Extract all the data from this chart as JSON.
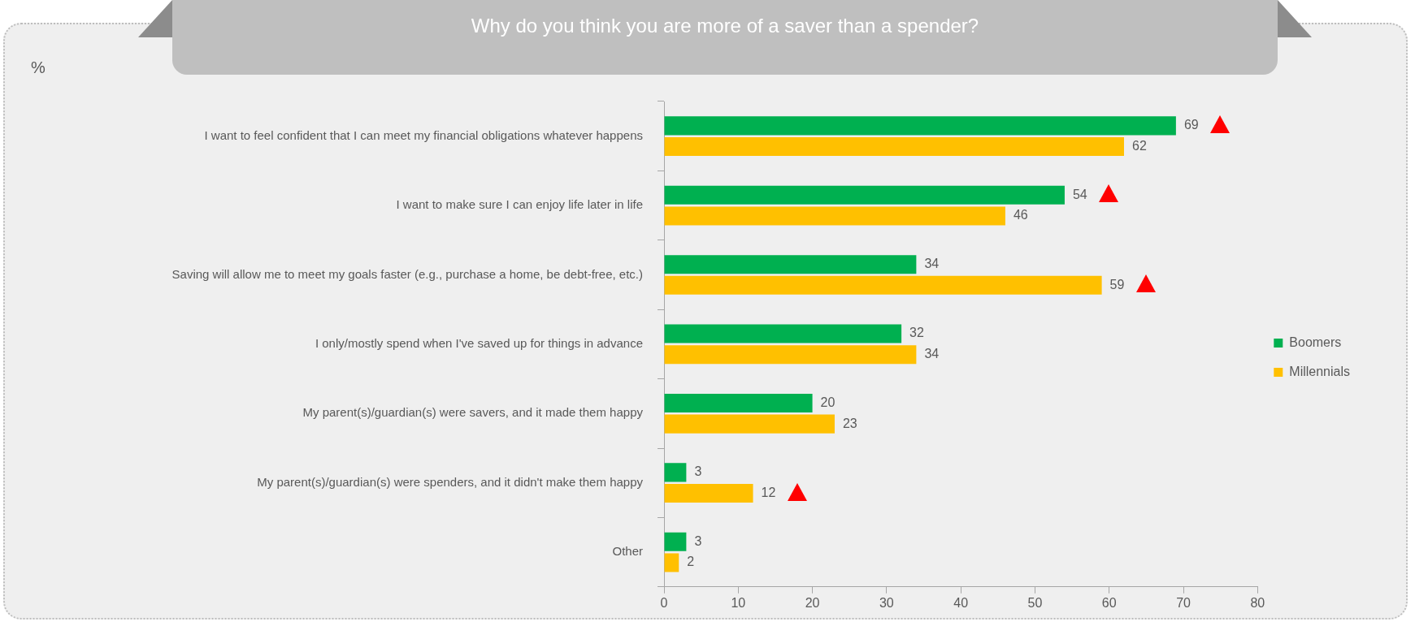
{
  "chart_data": {
    "type": "bar",
    "orientation": "horizontal",
    "title": "Why do you think you are more of a saver than a spender?",
    "annotations": [
      "%"
    ],
    "categories": [
      "I want to feel confident that I can meet my financial obligations whatever happens",
      "I want to make sure I can enjoy life later in life",
      "Saving will allow me to meet my goals faster (e.g., purchase a home, be debt-free, etc.)",
      "I only/mostly spend when I've saved up for things in advance",
      "My parent(s)/guardian(s) were savers, and it made them happy",
      "My parent(s)/guardian(s) were spenders, and it didn't make them happy",
      "Other"
    ],
    "series": [
      {
        "name": "Boomers",
        "color": "#00b050",
        "values": [
          69,
          54,
          34,
          32,
          20,
          3,
          3
        ]
      },
      {
        "name": "Millennials",
        "color": "#ffc000",
        "values": [
          62,
          46,
          59,
          34,
          23,
          12,
          2
        ]
      }
    ],
    "xlim": [
      0,
      80
    ],
    "xticks": [
      0,
      10,
      20,
      30,
      40,
      50,
      60,
      70,
      80
    ],
    "grid": false,
    "legend": "right",
    "data_labels": true
  }
}
